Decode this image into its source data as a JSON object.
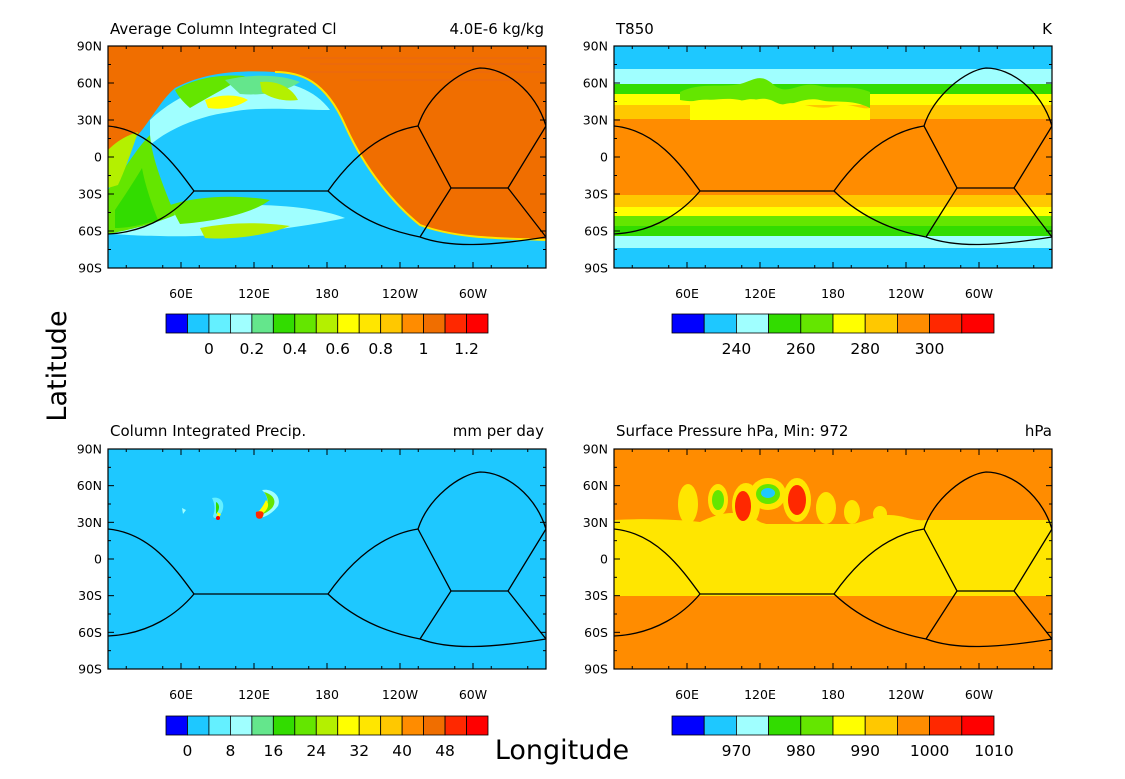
{
  "figure": {
    "ylabel": "Latitude",
    "xlabel": "Longitude"
  },
  "lat_ticks": [
    "90N",
    "60N",
    "30N",
    "0",
    "30S",
    "60S",
    "90S"
  ],
  "lon_ticks": [
    "60E",
    "120E",
    "180",
    "120W",
    "60W"
  ],
  "chart_data": [
    {
      "type": "heatmap",
      "title": "Average Column Integrated Cl",
      "units": "4.0E-6 kg/kg",
      "colorbar": {
        "colors": [
          "#0000ff",
          "#1ec8ff",
          "#64f0ff",
          "#a0ffff",
          "#64e68c",
          "#32dc00",
          "#64e600",
          "#b4f000",
          "#ffff00",
          "#ffe600",
          "#ffc800",
          "#ff8c00",
          "#f06e00",
          "#ff2800",
          "#ff0000"
        ],
        "labels": [
          "0",
          "0.2",
          "0.4",
          "0.6",
          "0.8",
          "1",
          "1.2"
        ]
      }
    },
    {
      "type": "heatmap",
      "title": "T850",
      "units": "K",
      "colorbar": {
        "colors": [
          "#0000ff",
          "#1ec8ff",
          "#a0ffff",
          "#32dc00",
          "#64e600",
          "#ffff00",
          "#ffc800",
          "#ff8c00",
          "#ff2800",
          "#ff0000"
        ],
        "labels": [
          "240",
          "260",
          "280",
          "300"
        ]
      }
    },
    {
      "type": "heatmap",
      "title": "Column Integrated Precip.",
      "units": "mm per day",
      "colorbar": {
        "colors": [
          "#0000ff",
          "#1ec8ff",
          "#64f0ff",
          "#a0ffff",
          "#64e68c",
          "#32dc00",
          "#64e600",
          "#b4f000",
          "#ffff00",
          "#ffe600",
          "#ffc800",
          "#ff8c00",
          "#f06e00",
          "#ff2800",
          "#ff0000"
        ],
        "labels": [
          "0",
          "8",
          "16",
          "24",
          "32",
          "40",
          "48"
        ]
      }
    },
    {
      "type": "heatmap",
      "title": "Surface Pressure hPa, Min: 972",
      "units": "hPa",
      "colorbar": {
        "colors": [
          "#0000ff",
          "#1ec8ff",
          "#a0ffff",
          "#32dc00",
          "#64e600",
          "#ffff00",
          "#ffc800",
          "#ff8c00",
          "#ff2800",
          "#ff0000"
        ],
        "labels": [
          "970",
          "980",
          "990",
          "1000",
          "1010"
        ]
      }
    }
  ]
}
